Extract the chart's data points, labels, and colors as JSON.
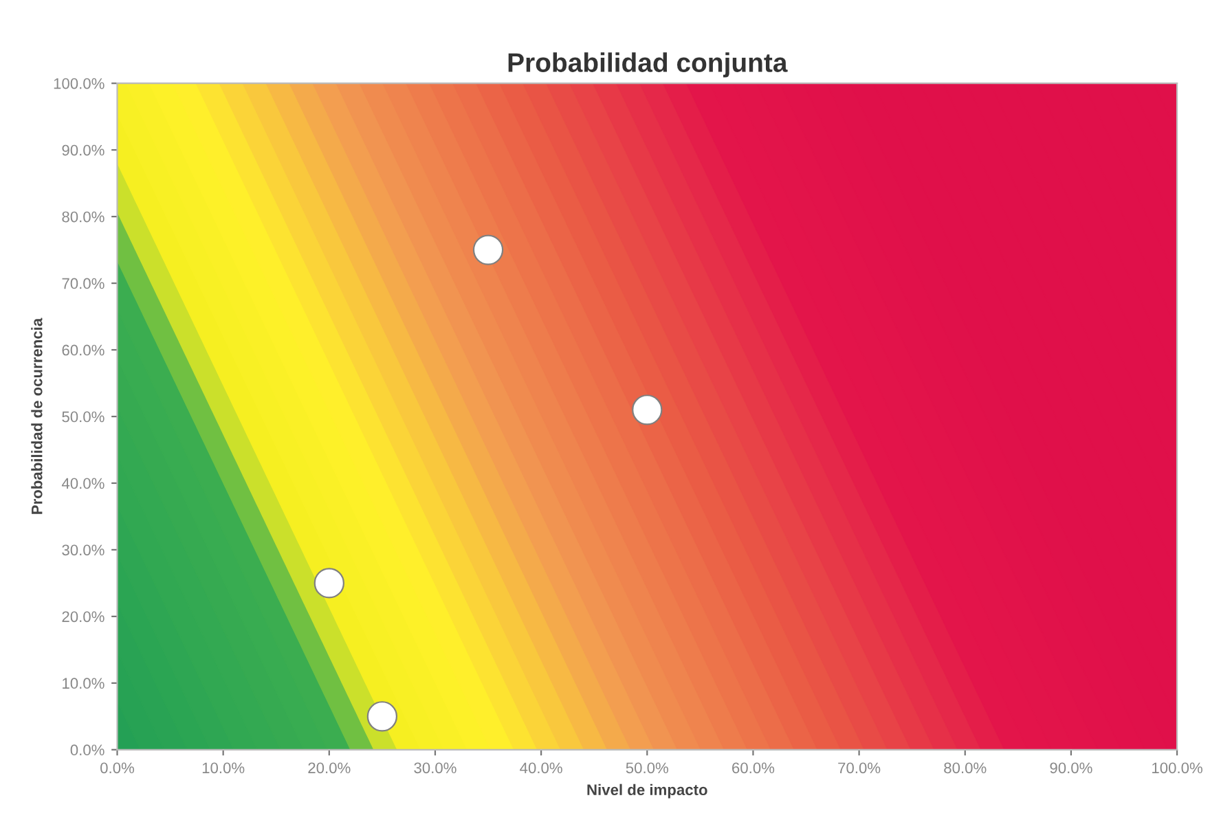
{
  "chart_data": {
    "type": "scatter",
    "title": "Probabilidad conjunta",
    "xlabel": "Nivel de impacto",
    "ylabel": "Probabilidad de ocurrencia",
    "x": [
      35,
      50,
      20,
      25
    ],
    "series": [
      {
        "color": "#ffffff",
        "values": [
          75,
          51,
          25,
          5
        ]
      }
    ],
    "marker": "circle",
    "grid": false,
    "legend": false,
    "xlim": [
      0,
      100
    ],
    "ylim": [
      0,
      100
    ],
    "xticks": [
      {
        "value": 0,
        "label": "0.0%"
      },
      {
        "value": 10,
        "label": "10.0%"
      },
      {
        "value": 20,
        "label": "20.0%"
      },
      {
        "value": 30,
        "label": "30.0%"
      },
      {
        "value": 40,
        "label": "40.0%"
      },
      {
        "value": 50,
        "label": "50.0%"
      },
      {
        "value": 60,
        "label": "60.0%"
      },
      {
        "value": 70,
        "label": "70.0%"
      },
      {
        "value": 80,
        "label": "80.0%"
      },
      {
        "value": 90,
        "label": "90.0%"
      },
      {
        "value": 100,
        "label": "100.0%"
      }
    ],
    "yticks": [
      {
        "value": 0,
        "label": "0.0%"
      },
      {
        "value": 10,
        "label": "10.0%"
      },
      {
        "value": 20,
        "label": "20.0%"
      },
      {
        "value": 30,
        "label": "30.0%"
      },
      {
        "value": 40,
        "label": "40.0%"
      },
      {
        "value": 50,
        "label": "50.0%"
      },
      {
        "value": 60,
        "label": "60.0%"
      },
      {
        "value": 70,
        "label": "70.0%"
      },
      {
        "value": 80,
        "label": "80.0%"
      },
      {
        "value": 90,
        "label": "90.0%"
      },
      {
        "value": 100,
        "label": "100.0%"
      }
    ]
  }
}
